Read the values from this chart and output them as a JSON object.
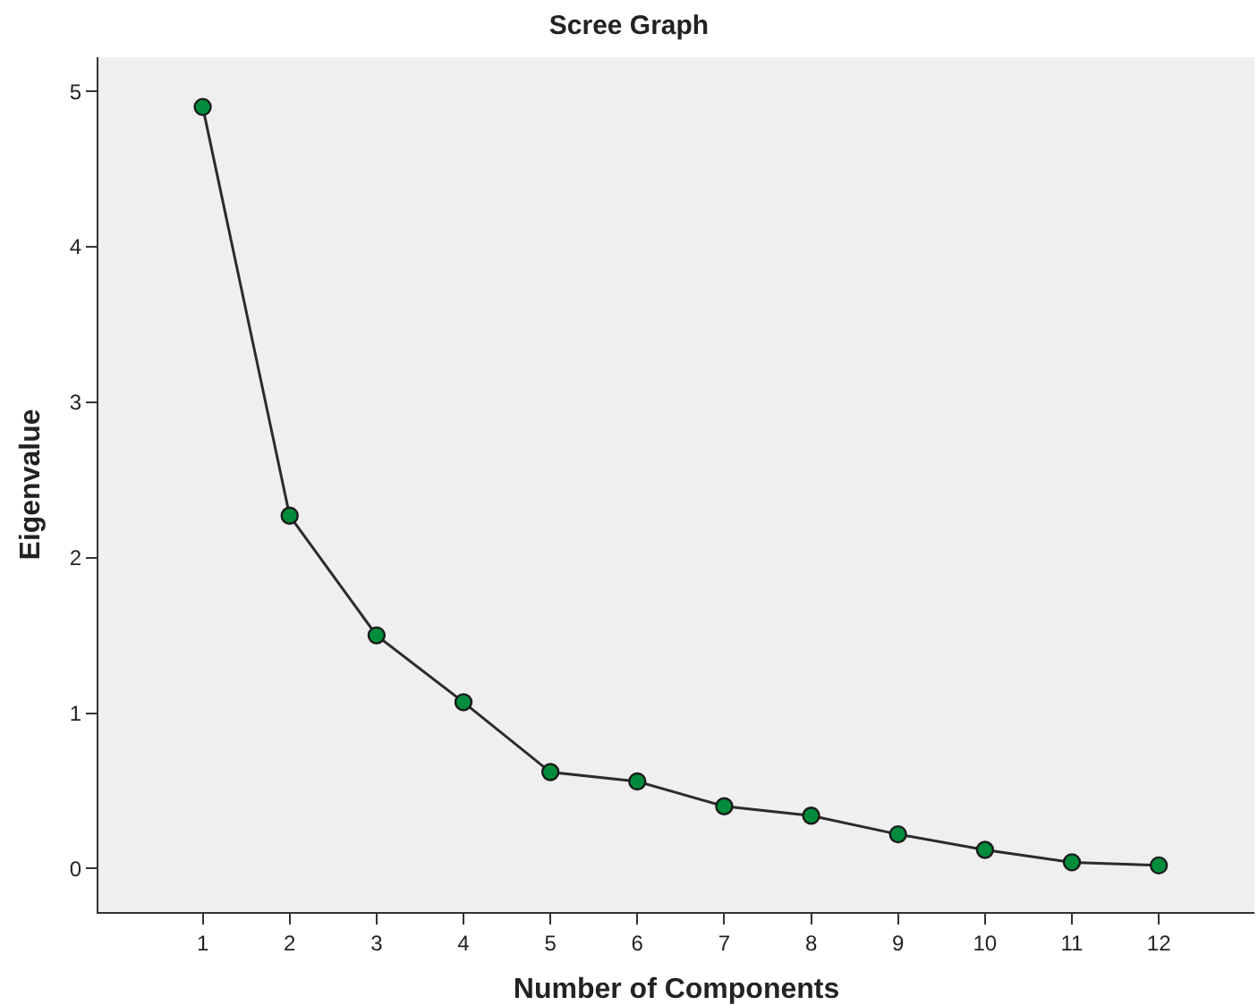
{
  "chart_data": {
    "type": "line",
    "title": "Scree Graph",
    "xlabel": "Number of Components",
    "ylabel": "Eigenvalue",
    "x": [
      1,
      2,
      3,
      4,
      5,
      6,
      7,
      8,
      9,
      10,
      11,
      12
    ],
    "series": [
      {
        "color": "#008c3c",
        "values": [
          4.9,
          2.27,
          1.5,
          1.07,
          0.62,
          0.56,
          0.4,
          0.34,
          0.22,
          0.12,
          0.04,
          0.02
        ]
      }
    ],
    "xlim": [
      -0.2,
      13.1
    ],
    "xticks": [
      1,
      2,
      3,
      4,
      5,
      6,
      7,
      8,
      9,
      10,
      11,
      12
    ],
    "ylim": [
      -0.28,
      5.22
    ],
    "yticks": [
      0,
      1,
      2,
      3,
      4,
      5
    ],
    "grid": false,
    "marker": "circle",
    "line_style": "solid"
  }
}
